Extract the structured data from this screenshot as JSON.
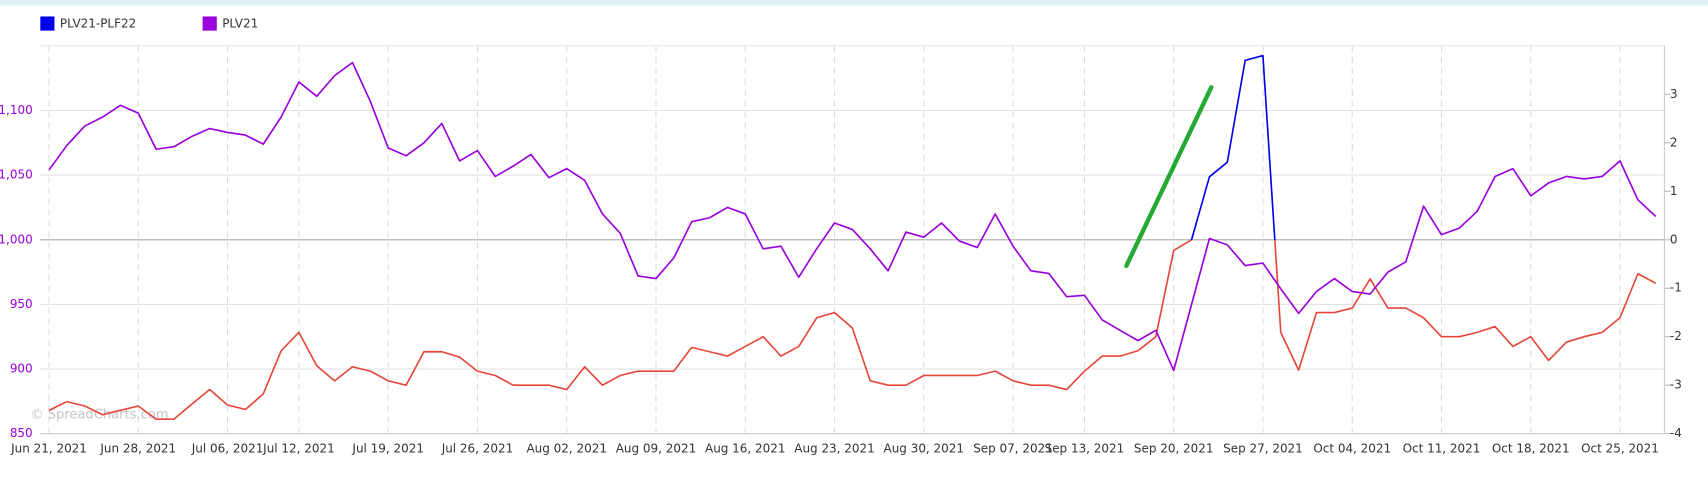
{
  "chart_data": {
    "type": "line",
    "watermark": "© SpreadCharts.com",
    "categories": [
      "Jun 21, 2021",
      null,
      null,
      null,
      null,
      "Jun 28, 2021",
      null,
      null,
      null,
      null,
      "Jul 06, 2021",
      null,
      null,
      null,
      "Jul 12, 2021",
      null,
      null,
      null,
      null,
      "Jul 19, 2021",
      null,
      null,
      null,
      null,
      "Jul 26, 2021",
      null,
      null,
      null,
      null,
      "Aug 02, 2021",
      null,
      null,
      null,
      null,
      "Aug 09, 2021",
      null,
      null,
      null,
      null,
      "Aug 16, 2021",
      null,
      null,
      null,
      null,
      "Aug 23, 2021",
      null,
      null,
      null,
      null,
      "Aug 30, 2021",
      null,
      null,
      null,
      null,
      "Sep 07, 2021",
      null,
      null,
      null,
      "Sep 13, 2021",
      null,
      null,
      null,
      null,
      "Sep 20, 2021",
      null,
      null,
      null,
      null,
      "Sep 27, 2021",
      null,
      null,
      null,
      null,
      "Oct 04, 2021",
      null,
      null,
      null,
      null,
      "Oct 11, 2021",
      null,
      null,
      null,
      null,
      "Oct 18, 2021",
      null,
      null,
      null,
      null,
      "Oct 25, 2021",
      null,
      null
    ],
    "series": [
      {
        "name": "PLV21-PLF22",
        "color": "#0000ee",
        "negative_color": "#e5473a",
        "axis": "y2",
        "values": [
          -3.52,
          -3.34,
          -3.43,
          -3.61,
          -3.52,
          -3.43,
          -3.7,
          -3.7,
          -3.39,
          -3.09,
          -3.41,
          -3.5,
          -3.18,
          -2.29,
          -1.91,
          -2.6,
          -2.91,
          -2.62,
          -2.71,
          -2.91,
          -3,
          -2.31,
          -2.31,
          -2.42,
          -2.71,
          -2.8,
          -3,
          -3,
          -3,
          -3.09,
          -2.62,
          -3,
          -2.8,
          -2.71,
          -2.71,
          -2.71,
          -2.22,
          -2.31,
          -2.4,
          -2.2,
          -2,
          -2.4,
          -2.2,
          -1.61,
          -1.5,
          -1.82,
          -2.91,
          -3,
          -3,
          -2.8,
          -2.8,
          -2.8,
          -2.8,
          -2.71,
          -2.91,
          -3,
          -3,
          -3.09,
          -2.71,
          -2.4,
          -2.4,
          -2.29,
          -2,
          -0.22,
          0,
          1.3,
          1.6,
          3.7,
          3.8,
          -1.91,
          -2.69,
          -1.5,
          -1.5,
          -1.41,
          -0.81,
          -1.41,
          -1.41,
          -1.61,
          -2,
          -2,
          -1.91,
          -1.79,
          -2.2,
          -2,
          -2.49,
          -2.11,
          -2,
          -1.91,
          -1.61,
          -0.7,
          -0.9
        ]
      },
      {
        "name": "PLV21",
        "color": "#9900dd",
        "values": [
          1054,
          1073,
          1088,
          1095,
          1104,
          1098,
          1070,
          1072,
          1080,
          1086,
          1083,
          1081,
          1074,
          1095,
          1122,
          1111,
          1127,
          1137,
          1107,
          1071,
          1065,
          1075,
          1090,
          1061,
          1069,
          1049,
          1057,
          1066,
          1048,
          1055,
          1046,
          1020,
          1005,
          972,
          970,
          986,
          1014,
          1017,
          1025,
          1020,
          993,
          995,
          971,
          993,
          1013,
          1008,
          993,
          976,
          1006,
          1002,
          1013,
          999,
          994,
          1020,
          995,
          976,
          974,
          956,
          957,
          938,
          930,
          922,
          930,
          899,
          950,
          1001,
          996,
          980,
          982,
          962,
          943,
          960,
          970,
          960,
          958,
          975,
          983,
          1026,
          1004,
          1009,
          1022,
          1049,
          1055,
          1034,
          1044,
          1049,
          1047,
          1049,
          1061,
          1031,
          1018
        ]
      }
    ],
    "ylim": [
      850,
      1150
    ],
    "yticks": [
      850,
      900,
      950,
      {
        "value": 1000,
        "label": "1,000"
      },
      {
        "value": 1050,
        "label": "1,050"
      },
      {
        "value": 1100,
        "label": "1,100"
      }
    ],
    "y2lim": [
      -4,
      4
    ],
    "y2ticks": [
      -4,
      -3,
      -2,
      -1,
      0,
      1,
      2,
      3
    ],
    "grid": true
  }
}
